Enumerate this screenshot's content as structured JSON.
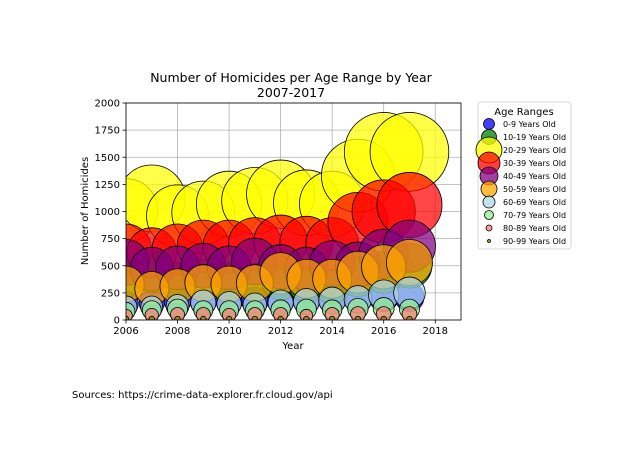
{
  "chart_data": {
    "type": "scatter",
    "title": "Number of Homicides per Age Range by Year",
    "subtitle": "2007-2017",
    "xlabel": "Year",
    "ylabel": "Number of Homicides",
    "xlim": [
      2006,
      2019
    ],
    "ylim": [
      0,
      2000
    ],
    "xticks": [
      2006,
      2008,
      2010,
      2012,
      2014,
      2016,
      2018
    ],
    "yticks": [
      0,
      250,
      500,
      750,
      1000,
      1250,
      1500,
      1750,
      2000
    ],
    "grid": true,
    "legend": {
      "title": "Age Ranges",
      "placement": "outside-right"
    },
    "marker_size": "proportional-to-value",
    "x": [
      2006,
      2007,
      2008,
      2009,
      2010,
      2011,
      2012,
      2013,
      2014,
      2015,
      2016,
      2017
    ],
    "series": [
      {
        "name": "0-9 Years Old",
        "color": "#0000ff",
        "values": [
          150,
          160,
          180,
          160,
          175,
          180,
          170,
          170,
          200,
          195,
          210,
          210
        ]
      },
      {
        "name": "10-19 Years Old",
        "color": "#008000",
        "values": [
          390,
          450,
          360,
          380,
          360,
          350,
          360,
          330,
          310,
          400,
          440,
          500
        ]
      },
      {
        "name": "20-29 Years Old",
        "color": "#ffff00",
        "values": [
          1010,
          1120,
          960,
          990,
          1070,
          1100,
          1160,
          1080,
          1070,
          1330,
          1550,
          1550
        ]
      },
      {
        "name": "30-39 Years Old",
        "color": "#ff0000",
        "values": [
          650,
          620,
          650,
          680,
          680,
          700,
          720,
          710,
          700,
          900,
          1000,
          1060
        ]
      },
      {
        "name": "40-49 Years Old",
        "color": "#800080",
        "values": [
          530,
          470,
          480,
          500,
          480,
          540,
          490,
          470,
          520,
          510,
          610,
          680
        ]
      },
      {
        "name": "50-59 Years Old",
        "color": "#ffa500",
        "values": [
          330,
          290,
          310,
          340,
          330,
          340,
          430,
          380,
          380,
          440,
          490,
          530
        ]
      },
      {
        "name": "60-69 Years Old",
        "color": "#add8e6",
        "values": [
          120,
          120,
          130,
          160,
          150,
          140,
          160,
          170,
          180,
          190,
          230,
          250
        ]
      },
      {
        "name": "70-79 Years Old",
        "color": "#90ee90",
        "values": [
          80,
          90,
          100,
          90,
          90,
          90,
          95,
          100,
          95,
          105,
          110,
          100
        ]
      },
      {
        "name": "80-89 Years Old",
        "color": "#fa8072",
        "values": [
          40,
          45,
          50,
          50,
          45,
          50,
          50,
          40,
          50,
          55,
          55,
          55
        ]
      },
      {
        "name": "90-99 Years Old",
        "color": "#808000",
        "values": [
          8,
          8,
          8,
          8,
          8,
          8,
          8,
          8,
          8,
          8,
          8,
          8
        ]
      }
    ]
  },
  "footer": {
    "source": "Sources: https://crime-data-explorer.fr.cloud.gov/api"
  }
}
